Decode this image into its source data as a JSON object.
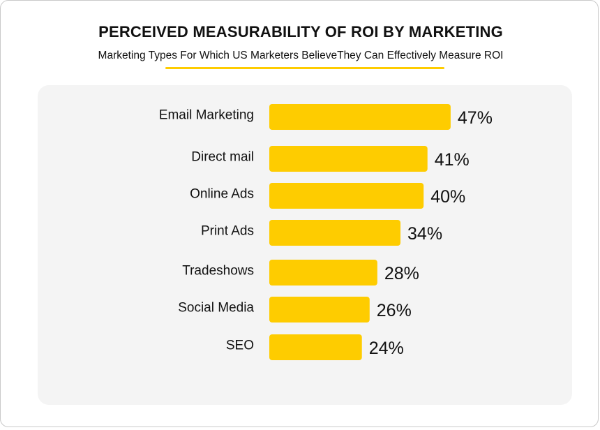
{
  "chart_data": {
    "type": "bar",
    "orientation": "horizontal",
    "title": "PERCEIVED MEASURABILITY OF ROI BY MARKETING",
    "subtitle": "Marketing Types For Which US Marketers BelieveThey Can Effectively Measure ROI",
    "categories": [
      "Email Marketing",
      "Direct mail",
      "Online Ads",
      "Print Ads",
      "Tradeshows",
      "Social Media",
      "SEO"
    ],
    "values": [
      47,
      41,
      40,
      34,
      28,
      26,
      24
    ],
    "value_labels": [
      "47%",
      "41%",
      "40%",
      "34%",
      "28%",
      "26%",
      "24%"
    ],
    "unit": "%",
    "xlabel": "",
    "ylabel": "",
    "grid": false,
    "legend": "none"
  },
  "colors": {
    "bar": "#FECC00",
    "accent_underline": "#FECC00",
    "panel_background": "#F4F4F4",
    "text": "#111111"
  }
}
